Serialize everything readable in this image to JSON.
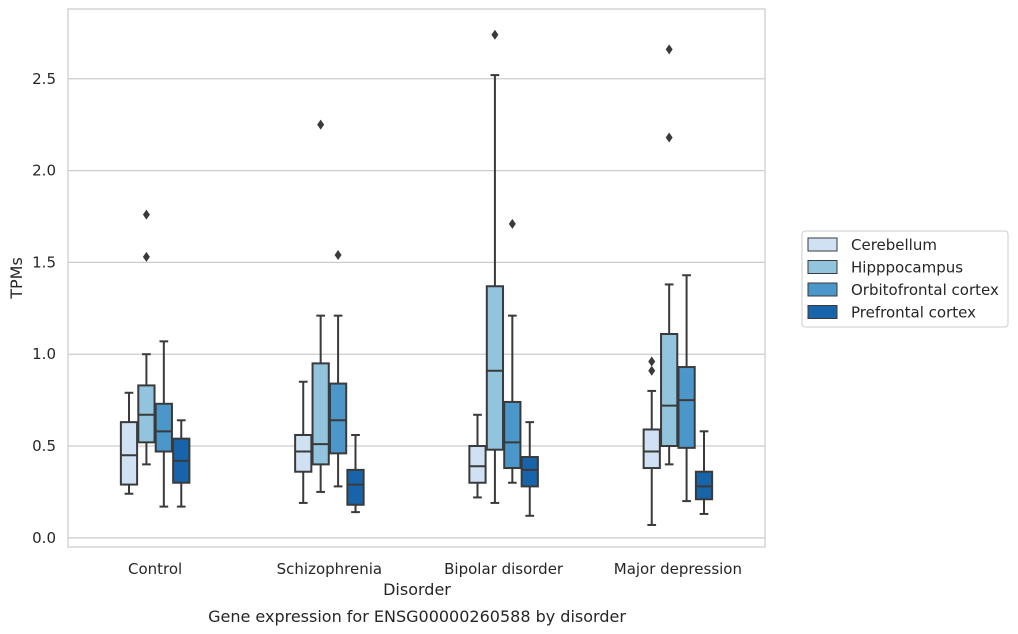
{
  "chart_data": {
    "type": "box",
    "title": "",
    "caption": "Gene expression for ENSG00000260588 by disorder",
    "xlabel": "Disorder",
    "ylabel": "TPMs",
    "ylim": [
      -0.05,
      2.88
    ],
    "yticks": [
      "0.0",
      "0.5",
      "1.0",
      "1.5",
      "2.0",
      "2.5"
    ],
    "grid": "horizontal",
    "legend_position": "right",
    "categories": [
      "Control",
      "Schizophrenia",
      "Bipolar disorder",
      "Major depression"
    ],
    "series": [
      {
        "name": "Cerebellum",
        "color": "#cfe1f2",
        "boxes": [
          {
            "whisker_low": 0.24,
            "q1": 0.29,
            "median": 0.45,
            "q3": 0.63,
            "whisker_high": 0.79,
            "outliers": []
          },
          {
            "whisker_low": 0.19,
            "q1": 0.36,
            "median": 0.47,
            "q3": 0.56,
            "whisker_high": 0.85,
            "outliers": []
          },
          {
            "whisker_low": 0.22,
            "q1": 0.3,
            "median": 0.39,
            "q3": 0.5,
            "whisker_high": 0.67,
            "outliers": []
          },
          {
            "whisker_low": 0.07,
            "q1": 0.38,
            "median": 0.47,
            "q3": 0.59,
            "whisker_high": 0.8,
            "outliers": [
              0.91,
              0.96
            ]
          }
        ]
      },
      {
        "name": "Hipppocampus",
        "color": "#93c4de",
        "boxes": [
          {
            "whisker_low": 0.4,
            "q1": 0.52,
            "median": 0.67,
            "q3": 0.83,
            "whisker_high": 1.0,
            "outliers": [
              1.53,
              1.76
            ]
          },
          {
            "whisker_low": 0.25,
            "q1": 0.4,
            "median": 0.51,
            "q3": 0.95,
            "whisker_high": 1.21,
            "outliers": [
              2.25
            ]
          },
          {
            "whisker_low": 0.19,
            "q1": 0.48,
            "median": 0.91,
            "q3": 1.37,
            "whisker_high": 2.52,
            "outliers": [
              2.74
            ]
          },
          {
            "whisker_low": 0.4,
            "q1": 0.5,
            "median": 0.72,
            "q3": 1.11,
            "whisker_high": 1.38,
            "outliers": [
              2.18,
              2.66
            ]
          }
        ]
      },
      {
        "name": "Orbitofrontal cortex",
        "color": "#4b97c9",
        "boxes": [
          {
            "whisker_low": 0.17,
            "q1": 0.47,
            "median": 0.58,
            "q3": 0.73,
            "whisker_high": 1.07,
            "outliers": []
          },
          {
            "whisker_low": 0.28,
            "q1": 0.46,
            "median": 0.64,
            "q3": 0.84,
            "whisker_high": 1.21,
            "outliers": [
              1.54
            ]
          },
          {
            "whisker_low": 0.3,
            "q1": 0.38,
            "median": 0.52,
            "q3": 0.74,
            "whisker_high": 1.21,
            "outliers": [
              1.71
            ]
          },
          {
            "whisker_low": 0.2,
            "q1": 0.49,
            "median": 0.75,
            "q3": 0.93,
            "whisker_high": 1.43,
            "outliers": []
          }
        ]
      },
      {
        "name": "Prefrontal cortex",
        "color": "#1764ab",
        "boxes": [
          {
            "whisker_low": 0.17,
            "q1": 0.3,
            "median": 0.42,
            "q3": 0.54,
            "whisker_high": 0.64,
            "outliers": []
          },
          {
            "whisker_low": 0.14,
            "q1": 0.18,
            "median": 0.29,
            "q3": 0.37,
            "whisker_high": 0.56,
            "outliers": []
          },
          {
            "whisker_low": 0.12,
            "q1": 0.28,
            "median": 0.37,
            "q3": 0.44,
            "whisker_high": 0.63,
            "outliers": []
          },
          {
            "whisker_low": 0.13,
            "q1": 0.21,
            "median": 0.28,
            "q3": 0.36,
            "whisker_high": 0.58,
            "outliers": []
          }
        ]
      }
    ]
  }
}
